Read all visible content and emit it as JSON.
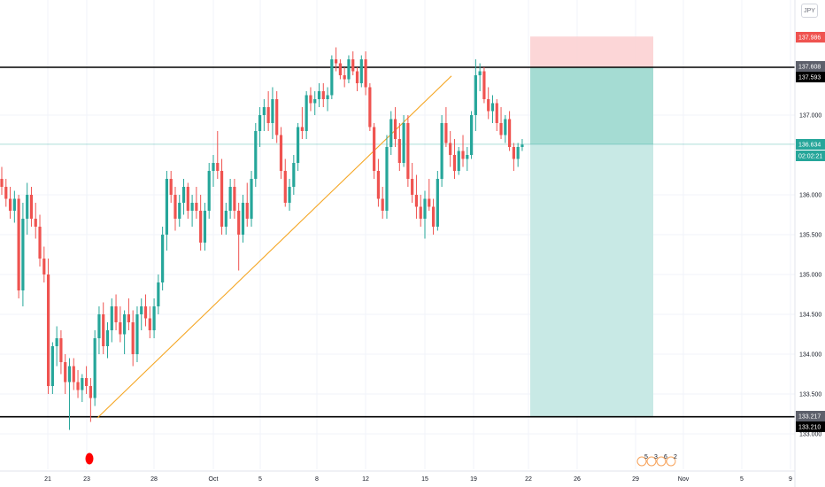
{
  "currency": "JPY",
  "colors": {
    "up": "#26a69a",
    "down": "#ef5350",
    "trendline": "#f5a623",
    "hline": "#000000",
    "stop_zone": "#fccfd0",
    "target_zone": "#c8e9e5",
    "target_zone_dark": "#a5dcd3",
    "price_tag_last": "#26a69a",
    "price_tag_stop": "#ef5350"
  },
  "chart_data": {
    "type": "candlestick",
    "y_ticks": [
      133.0,
      133.5,
      134.0,
      134.5,
      135.0,
      135.5,
      136.0,
      137.0
    ],
    "y_tick_labels": [
      "133.000",
      "133.500",
      "134.000",
      "134.500",
      "135.000",
      "135.500",
      "136.000",
      "137.000"
    ],
    "ylim": [
      132.85,
      138.1
    ],
    "x_tick_labels": [
      "21",
      "23",
      "28",
      "Oct",
      "5",
      "8",
      "12",
      "15",
      "19",
      "22",
      "26",
      "29",
      "Nov",
      "5",
      "9"
    ],
    "price_tags": [
      {
        "label": "137.986",
        "value": 137.986,
        "kind": "stop"
      },
      {
        "label": "137.608",
        "value": 137.608,
        "kind": "hline"
      },
      {
        "label": "137.593",
        "value": 137.593,
        "kind": "hline"
      },
      {
        "label": "136.634",
        "value": 136.634,
        "kind": "last"
      },
      {
        "label": "02:02:21",
        "value": 136.52,
        "kind": "countdown"
      },
      {
        "label": "133.217",
        "value": 133.217,
        "kind": "hline"
      },
      {
        "label": "133.210",
        "value": 133.21,
        "kind": "hline"
      }
    ],
    "horizontal_lines": [
      137.6,
      133.215
    ],
    "trendline": {
      "start": {
        "bar": 21,
        "price": 133.2
      },
      "end": {
        "bar": 96,
        "price": 137.78
      }
    },
    "position": {
      "start_bar": 112,
      "end_bar": 139,
      "entry": 136.634,
      "stop": 137.986,
      "target": 133.217
    },
    "event_marker_bar": 19,
    "candles": [
      [
        136.2,
        136.35,
        136.0,
        136.1
      ],
      [
        136.1,
        136.2,
        135.85,
        135.95
      ],
      [
        135.95,
        136.1,
        135.7,
        135.8
      ],
      [
        135.8,
        136.05,
        135.65,
        135.95
      ],
      [
        135.95,
        136.0,
        134.7,
        134.8
      ],
      [
        134.8,
        135.9,
        134.6,
        135.7
      ],
      [
        135.7,
        136.15,
        135.5,
        136.0
      ],
      [
        136.0,
        136.1,
        135.6,
        135.7
      ],
      [
        135.7,
        135.9,
        135.45,
        135.6
      ],
      [
        135.6,
        135.75,
        135.1,
        135.2
      ],
      [
        135.2,
        135.35,
        134.9,
        135.0
      ],
      [
        135.0,
        135.2,
        133.5,
        133.6
      ],
      [
        133.6,
        134.15,
        133.5,
        134.1
      ],
      [
        134.1,
        134.35,
        133.85,
        134.2
      ],
      [
        134.2,
        134.3,
        133.75,
        133.9
      ],
      [
        133.9,
        134.0,
        133.5,
        133.65
      ],
      [
        133.65,
        133.95,
        133.05,
        133.85
      ],
      [
        133.85,
        133.95,
        133.55,
        133.65
      ],
      [
        133.65,
        133.8,
        133.45,
        133.55
      ],
      [
        133.55,
        133.75,
        133.4,
        133.7
      ],
      [
        133.7,
        133.85,
        133.5,
        133.6
      ],
      [
        133.6,
        133.7,
        133.15,
        133.45
      ],
      [
        133.45,
        134.3,
        133.35,
        134.2
      ],
      [
        134.2,
        134.6,
        134.0,
        134.5
      ],
      [
        134.5,
        134.65,
        134.0,
        134.1
      ],
      [
        134.1,
        134.4,
        133.95,
        134.3
      ],
      [
        134.3,
        134.7,
        134.15,
        134.6
      ],
      [
        134.6,
        134.75,
        134.3,
        134.4
      ],
      [
        134.4,
        134.6,
        134.15,
        134.25
      ],
      [
        134.25,
        134.55,
        134.0,
        134.5
      ],
      [
        134.5,
        134.7,
        134.3,
        134.4
      ],
      [
        134.4,
        134.55,
        133.85,
        134.0
      ],
      [
        134.0,
        134.6,
        133.9,
        134.5
      ],
      [
        134.5,
        134.7,
        134.3,
        134.6
      ],
      [
        134.6,
        134.75,
        134.35,
        134.45
      ],
      [
        134.45,
        134.6,
        134.2,
        134.3
      ],
      [
        134.3,
        134.7,
        134.2,
        134.6
      ],
      [
        134.6,
        135.0,
        134.5,
        134.9
      ],
      [
        134.9,
        135.6,
        134.8,
        135.5
      ],
      [
        135.5,
        136.3,
        135.3,
        136.2
      ],
      [
        136.2,
        136.3,
        135.9,
        136.0
      ],
      [
        136.0,
        136.1,
        135.55,
        135.7
      ],
      [
        135.7,
        136.0,
        135.6,
        135.9
      ],
      [
        135.9,
        136.2,
        135.75,
        136.1
      ],
      [
        136.1,
        136.15,
        135.7,
        135.8
      ],
      [
        135.8,
        136.0,
        135.6,
        135.9
      ],
      [
        135.9,
        136.1,
        135.7,
        135.8
      ],
      [
        135.8,
        136.0,
        135.3,
        135.4
      ],
      [
        135.4,
        135.9,
        135.3,
        135.8
      ],
      [
        135.8,
        136.4,
        135.7,
        136.3
      ],
      [
        136.3,
        136.5,
        136.1,
        136.4
      ],
      [
        136.4,
        136.8,
        136.2,
        136.3
      ],
      [
        136.3,
        136.45,
        135.5,
        135.6
      ],
      [
        135.6,
        135.9,
        135.5,
        135.8
      ],
      [
        135.8,
        136.2,
        135.7,
        136.1
      ],
      [
        136.1,
        136.2,
        135.7,
        135.8
      ],
      [
        135.8,
        135.9,
        135.05,
        135.5
      ],
      [
        135.5,
        136.0,
        135.4,
        135.9
      ],
      [
        135.9,
        136.15,
        135.6,
        135.7
      ],
      [
        135.7,
        136.3,
        135.6,
        136.2
      ],
      [
        136.2,
        136.9,
        136.1,
        136.8
      ],
      [
        136.8,
        137.1,
        136.6,
        137.0
      ],
      [
        137.0,
        137.2,
        136.8,
        137.1
      ],
      [
        137.1,
        137.3,
        136.8,
        136.9
      ],
      [
        136.9,
        137.35,
        136.7,
        137.2
      ],
      [
        137.2,
        137.3,
        136.65,
        136.75
      ],
      [
        136.75,
        136.85,
        136.2,
        136.3
      ],
      [
        136.3,
        136.45,
        135.85,
        135.9
      ],
      [
        135.9,
        136.2,
        135.8,
        136.1
      ],
      [
        136.1,
        136.5,
        136.0,
        136.4
      ],
      [
        136.4,
        136.9,
        136.3,
        136.85
      ],
      [
        136.85,
        137.1,
        136.7,
        136.8
      ],
      [
        136.8,
        137.3,
        136.7,
        137.25
      ],
      [
        137.25,
        137.35,
        137.05,
        137.15
      ],
      [
        137.15,
        137.3,
        137.0,
        137.2
      ],
      [
        137.2,
        137.4,
        137.1,
        137.3
      ],
      [
        137.3,
        137.4,
        137.1,
        137.2
      ],
      [
        137.2,
        137.35,
        137.05,
        137.25
      ],
      [
        137.25,
        137.75,
        137.2,
        137.7
      ],
      [
        137.7,
        137.85,
        137.55,
        137.65
      ],
      [
        137.65,
        137.7,
        137.45,
        137.5
      ],
      [
        137.5,
        137.6,
        137.35,
        137.45
      ],
      [
        137.45,
        137.75,
        137.4,
        137.7
      ],
      [
        137.7,
        137.8,
        137.5,
        137.55
      ],
      [
        137.55,
        137.6,
        137.3,
        137.4
      ],
      [
        137.4,
        137.75,
        137.35,
        137.7
      ],
      [
        137.7,
        137.8,
        137.25,
        137.35
      ],
      [
        137.35,
        137.4,
        136.8,
        136.85
      ],
      [
        136.85,
        136.9,
        136.2,
        136.3
      ],
      [
        136.3,
        136.45,
        135.85,
        135.95
      ],
      [
        135.95,
        136.1,
        135.7,
        135.8
      ],
      [
        135.8,
        136.75,
        135.7,
        136.6
      ],
      [
        136.6,
        137.05,
        136.5,
        136.95
      ],
      [
        136.95,
        137.1,
        136.6,
        136.7
      ],
      [
        136.7,
        136.9,
        136.3,
        136.4
      ],
      [
        136.4,
        137.0,
        136.35,
        136.9
      ],
      [
        136.9,
        137.0,
        136.1,
        136.2
      ],
      [
        136.2,
        136.4,
        135.9,
        136.0
      ],
      [
        136.0,
        136.25,
        135.7,
        135.85
      ],
      [
        135.85,
        136.0,
        135.6,
        135.7
      ],
      [
        135.7,
        136.05,
        135.45,
        135.95
      ],
      [
        135.95,
        136.2,
        135.8,
        135.85
      ],
      [
        135.85,
        135.95,
        135.5,
        135.6
      ],
      [
        135.6,
        136.3,
        135.55,
        136.2
      ],
      [
        136.2,
        137.0,
        136.1,
        136.9
      ],
      [
        136.9,
        137.1,
        136.6,
        136.65
      ],
      [
        136.65,
        136.8,
        136.35,
        136.5
      ],
      [
        136.5,
        136.7,
        136.2,
        136.3
      ],
      [
        136.3,
        136.6,
        136.25,
        136.55
      ],
      [
        136.55,
        136.75,
        136.35,
        136.45
      ],
      [
        136.45,
        136.6,
        136.3,
        136.5
      ],
      [
        136.5,
        137.05,
        136.45,
        137.0
      ],
      [
        137.0,
        137.7,
        136.8,
        137.5
      ],
      [
        137.5,
        137.65,
        137.3,
        137.55
      ],
      [
        137.55,
        137.6,
        137.15,
        137.2
      ],
      [
        137.2,
        137.35,
        136.95,
        137.05
      ],
      [
        137.05,
        137.25,
        136.9,
        137.15
      ],
      [
        137.15,
        137.2,
        136.8,
        136.9
      ],
      [
        136.9,
        137.1,
        136.7,
        136.75
      ],
      [
        136.75,
        137.0,
        136.65,
        136.95
      ],
      [
        136.95,
        137.05,
        136.55,
        136.6
      ],
      [
        136.6,
        136.65,
        136.3,
        136.45
      ],
      [
        136.45,
        136.65,
        136.35,
        136.6
      ],
      [
        136.6,
        136.7,
        136.55,
        136.63
      ]
    ]
  },
  "event_icons": {
    "labels": [
      "5",
      "3",
      "6",
      "2"
    ]
  }
}
